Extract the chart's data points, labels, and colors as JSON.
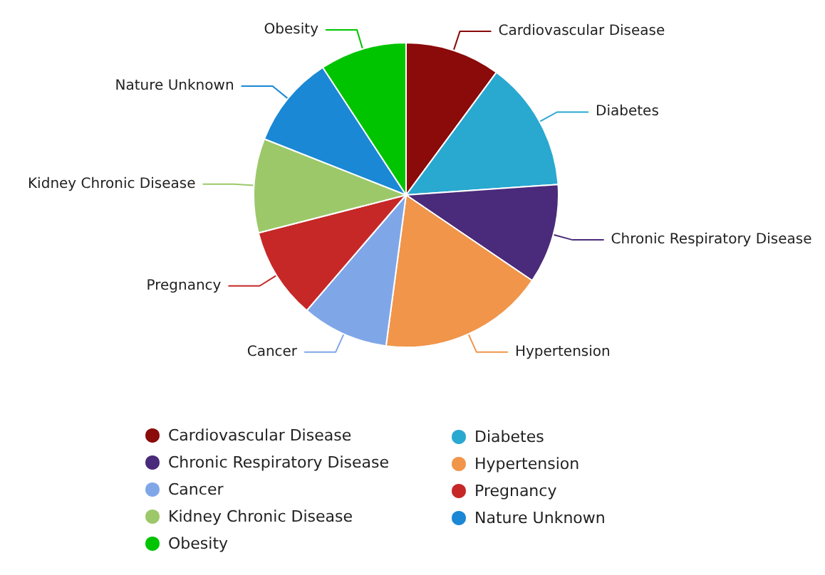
{
  "chart_data": {
    "type": "pie",
    "categories": [
      "Cardiovascular Disease",
      "Diabetes",
      "Chronic Respiratory Disease",
      "Hypertension",
      "Cancer",
      "Pregnancy",
      "Kidney Chronic Disease",
      "Nature Unknown",
      "Obesity"
    ],
    "values": [
      10.1,
      13.8,
      10.6,
      17.6,
      9.2,
      9.7,
      10.0,
      9.8,
      9.2
    ],
    "colors": [
      "#8b0a0a",
      "#29a8d0",
      "#4a2a7a",
      "#f0954a",
      "#7fa7e8",
      "#c62828",
      "#9cc86a",
      "#1a88d4",
      "#00c400"
    ],
    "legend": "bottom"
  }
}
